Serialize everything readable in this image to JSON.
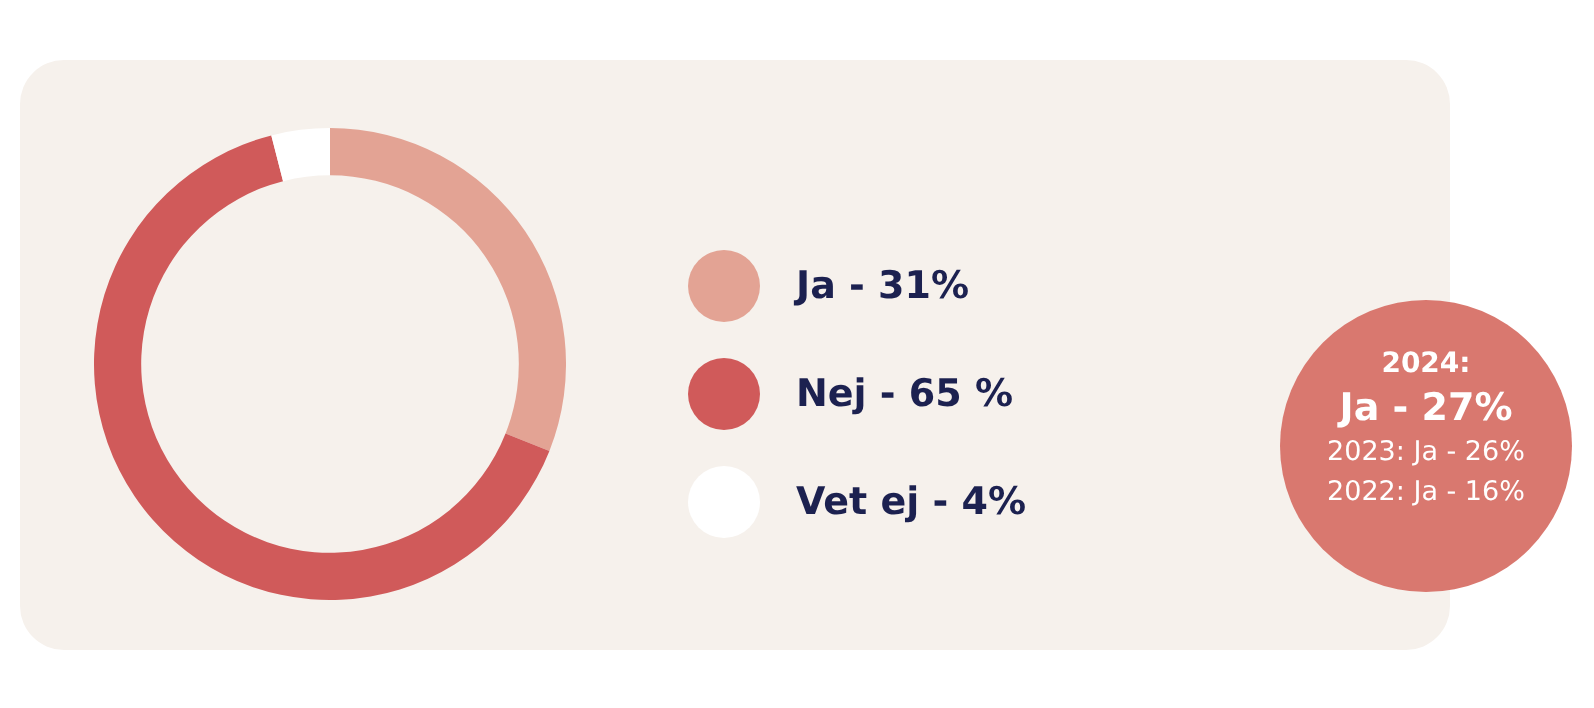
{
  "chart_data": {
    "type": "donut",
    "categories": [
      "Ja - 31%",
      "Nej - 65 %",
      "Vet ej - 4%"
    ],
    "values": [
      31,
      65,
      4
    ],
    "colors": [
      "#e3a394",
      "#d05a5a",
      "#ffffff"
    ],
    "legend": "right",
    "annotations": [
      "2024:",
      "Ja - 27%",
      "2023: Ja - 26%",
      "2022: Ja - 16%"
    ]
  }
}
